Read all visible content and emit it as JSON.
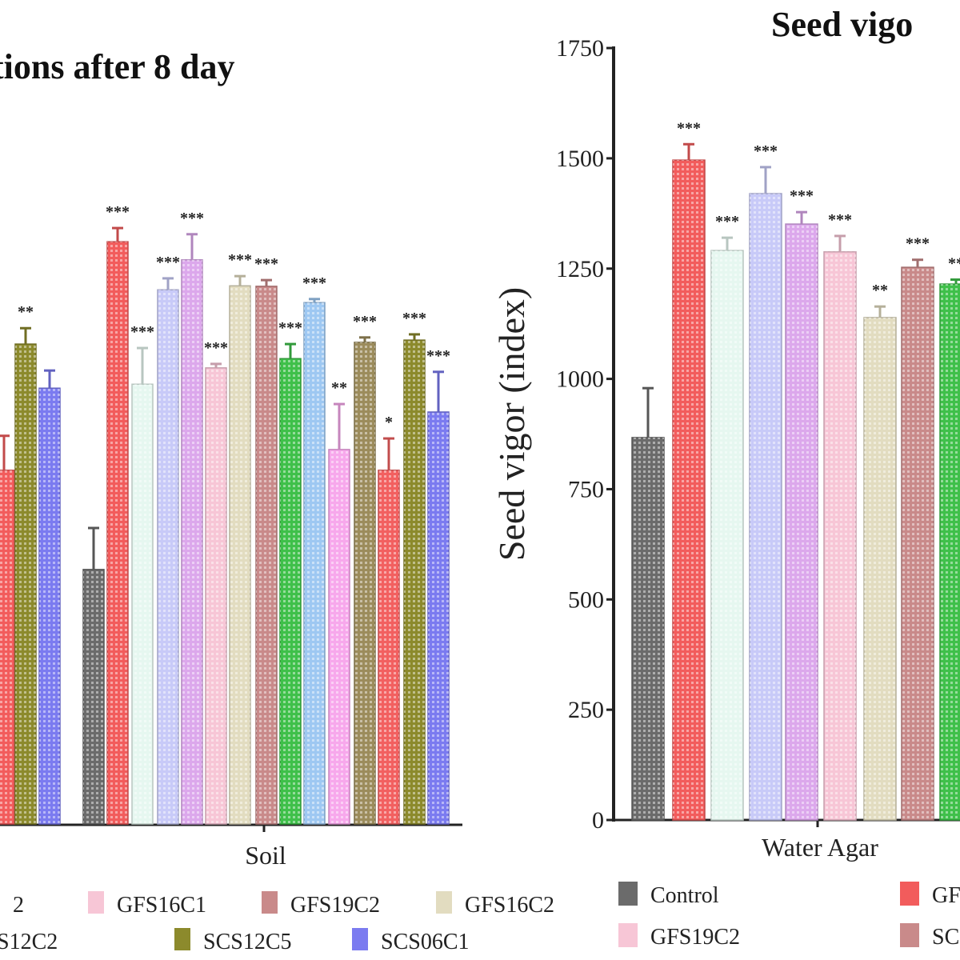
{
  "chart_data": [
    {
      "type": "bar",
      "title": "tions after 8 day",
      "xlabel": "",
      "ylabel": "",
      "categories": [
        "",
        "Soil"
      ],
      "error_bars": true,
      "grid": false,
      "groups": [
        {
          "category": "",
          "bars": [
            {
              "color": "#f25c5c",
              "value": 802,
              "err_top": 880,
              "sig": ""
            },
            {
              "color": "#8c8a2c",
              "value": 1088,
              "err_top": 1124,
              "sig": "**"
            },
            {
              "color": "#7b7bf0",
              "value": 988,
              "err_top": 1028,
              "sig": ""
            }
          ]
        },
        {
          "category": "Soil",
          "bars": [
            {
              "color": "#6b6b6b",
              "value": 577,
              "err_top": 671,
              "sig": ""
            },
            {
              "color": "#f25c5c",
              "value": 1320,
              "err_top": 1351,
              "sig": "***"
            },
            {
              "color": "#e6f7f0",
              "value": 997,
              "err_top": 1079,
              "sig": "***"
            },
            {
              "color": "#c8caf8",
              "value": 1211,
              "err_top": 1237,
              "sig": "***"
            },
            {
              "color": "#dca8ec",
              "value": 1279,
              "err_top": 1337,
              "sig": "***"
            },
            {
              "color": "#f7c6d6",
              "value": 1034,
              "err_top": 1043,
              "sig": "***"
            },
            {
              "color": "#e2dcc0",
              "value": 1220,
              "err_top": 1242,
              "sig": "***"
            },
            {
              "color": "#c98a8a",
              "value": 1219,
              "err_top": 1233,
              "sig": "***"
            },
            {
              "color": "#3fc04a",
              "value": 1055,
              "err_top": 1088,
              "sig": "***"
            },
            {
              "color": "#9ec8f2",
              "value": 1182,
              "err_top": 1190,
              "sig": "***"
            },
            {
              "color": "#f7a8ec",
              "value": 849,
              "err_top": 952,
              "sig": "**"
            },
            {
              "color": "#9c8c5c",
              "value": 1092,
              "err_top": 1103,
              "sig": "***"
            },
            {
              "color": "#f26060",
              "value": 802,
              "err_top": 874,
              "sig": "*"
            },
            {
              "color": "#8c8a2c",
              "value": 1097,
              "err_top": 1110,
              "sig": "***"
            },
            {
              "color": "#7b7bf0",
              "value": 934,
              "err_top": 1025,
              "sig": "***"
            }
          ]
        }
      ],
      "legend": [
        {
          "label": "2",
          "color": "#c8caf8"
        },
        {
          "label": "GFS16C1",
          "color": "#f7c6d6"
        },
        {
          "label": "GFS19C2",
          "color": "#c98a8a"
        },
        {
          "label": "GFS16C2",
          "color": "#e2dcc0"
        },
        {
          "label": "S12C2",
          "color": "#f26060"
        },
        {
          "label": "SCS12C5",
          "color": "#8c8a2c"
        },
        {
          "label": "SCS06C1",
          "color": "#7b7bf0"
        }
      ],
      "legend_position": "bottom"
    },
    {
      "type": "bar",
      "title": "Seed vigo",
      "xlabel": "",
      "ylabel": "Seed vigor (index)",
      "ylim": [
        0,
        1750
      ],
      "yticks": [
        "0",
        "250",
        "500",
        "750",
        "1000",
        "1250",
        "1500",
        "1750"
      ],
      "categories": [
        "Water Agar"
      ],
      "error_bars": true,
      "grid": false,
      "groups": [
        {
          "category": "Water Agar",
          "bars": [
            {
              "color": "#6b6b6b",
              "value": 867,
              "err_top": 979,
              "sig": ""
            },
            {
              "color": "#f25c5c",
              "value": 1496,
              "err_top": 1532,
              "sig": "***"
            },
            {
              "color": "#e6f7f0",
              "value": 1291,
              "err_top": 1320,
              "sig": "***"
            },
            {
              "color": "#c8caf8",
              "value": 1420,
              "err_top": 1480,
              "sig": "***"
            },
            {
              "color": "#dca8ec",
              "value": 1351,
              "err_top": 1378,
              "sig": "***"
            },
            {
              "color": "#f7c6d6",
              "value": 1288,
              "err_top": 1324,
              "sig": "***"
            },
            {
              "color": "#e2dcc0",
              "value": 1139,
              "err_top": 1164,
              "sig": "**"
            },
            {
              "color": "#c98a8a",
              "value": 1253,
              "err_top": 1270,
              "sig": "***"
            },
            {
              "color": "#3fc04a",
              "value": 1215,
              "err_top": 1225,
              "sig": "**"
            }
          ]
        }
      ],
      "legend": [
        {
          "label": "Control",
          "color": "#6b6b6b"
        },
        {
          "label": "GF",
          "color": "#f25c5c"
        },
        {
          "label": "GFS19C2",
          "color": "#f7c6d6"
        },
        {
          "label": "SC",
          "color": "#c98a8a"
        }
      ],
      "legend_position": "bottom"
    }
  ]
}
